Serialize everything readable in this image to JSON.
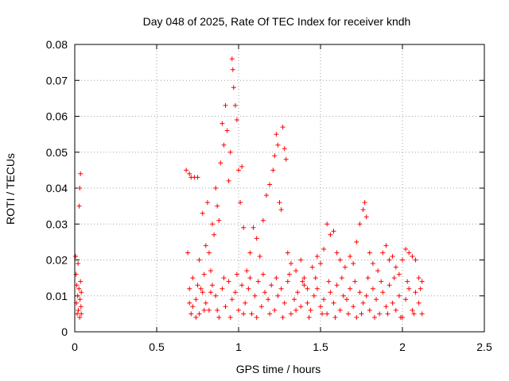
{
  "chart_data": {
    "type": "scatter",
    "title": "Day 048 of 2025, Rate Of TEC Index for receiver kndh",
    "xlabel": "GPS time / hours",
    "ylabel": "ROTI / TECUs",
    "xlim": [
      0,
      2.5
    ],
    "ylim": [
      0,
      0.08
    ],
    "x_ticks": [
      0,
      0.5,
      1,
      1.5,
      2,
      2.5
    ],
    "x_tick_labels": [
      "0",
      "0.5",
      "1",
      "1.5",
      "2",
      "2.5"
    ],
    "y_ticks": [
      0,
      0.01,
      0.02,
      0.03,
      0.04,
      0.05,
      0.06,
      0.07,
      0.08
    ],
    "y_tick_labels": [
      "0",
      "0.01",
      "0.02",
      "0.03",
      "0.04",
      "0.05",
      "0.06",
      "0.07",
      "0.08"
    ],
    "grid": true,
    "marker": "+",
    "marker_color": "#ff0000",
    "series": [
      {
        "name": "ROTI",
        "points": [
          [
            0.005,
            0.021
          ],
          [
            0.008,
            0.016
          ],
          [
            0.01,
            0.008
          ],
          [
            0.012,
            0.013
          ],
          [
            0.015,
            0.005
          ],
          [
            0.018,
            0.01
          ],
          [
            0.02,
            0.019
          ],
          [
            0.022,
            0.006
          ],
          [
            0.025,
            0.012
          ],
          [
            0.027,
            0.035
          ],
          [
            0.03,
            0.04
          ],
          [
            0.03,
            0.004
          ],
          [
            0.032,
            0.009
          ],
          [
            0.035,
            0.044
          ],
          [
            0.035,
            0.014
          ],
          [
            0.038,
            0.007
          ],
          [
            0.04,
            0.011
          ],
          [
            0.04,
            0.005
          ],
          [
            0.68,
            0.045
          ],
          [
            0.69,
            0.022
          ],
          [
            0.7,
            0.044
          ],
          [
            0.7,
            0.008
          ],
          [
            0.71,
            0.043
          ],
          [
            0.72,
            0.015
          ],
          [
            0.73,
            0.043
          ],
          [
            0.74,
            0.004
          ],
          [
            0.75,
            0.043
          ],
          [
            0.76,
            0.02
          ],
          [
            0.77,
            0.012
          ],
          [
            0.78,
            0.033
          ],
          [
            0.79,
            0.006
          ],
          [
            0.8,
            0.024
          ],
          [
            0.81,
            0.036
          ],
          [
            0.82,
            0.022
          ],
          [
            0.83,
            0.011
          ],
          [
            0.84,
            0.03
          ],
          [
            0.85,
            0.027
          ],
          [
            0.86,
            0.04
          ],
          [
            0.87,
            0.035
          ],
          [
            0.88,
            0.031
          ],
          [
            0.89,
            0.047
          ],
          [
            0.9,
            0.058
          ],
          [
            0.91,
            0.052
          ],
          [
            0.92,
            0.063
          ],
          [
            0.93,
            0.056
          ],
          [
            0.94,
            0.042
          ],
          [
            0.95,
            0.05
          ],
          [
            0.96,
            0.076
          ],
          [
            0.965,
            0.073
          ],
          [
            0.97,
            0.068
          ],
          [
            0.98,
            0.063
          ],
          [
            0.99,
            0.059
          ],
          [
            1.0,
            0.045
          ],
          [
            1.01,
            0.036
          ],
          [
            1.02,
            0.046
          ],
          [
            1.03,
            0.029
          ],
          [
            1.05,
            0.017
          ],
          [
            1.07,
            0.022
          ],
          [
            1.09,
            0.029
          ],
          [
            1.11,
            0.026
          ],
          [
            1.13,
            0.021
          ],
          [
            1.15,
            0.031
          ],
          [
            1.17,
            0.038
          ],
          [
            1.19,
            0.041
          ],
          [
            1.21,
            0.045
          ],
          [
            1.22,
            0.049
          ],
          [
            1.23,
            0.055
          ],
          [
            1.24,
            0.052
          ],
          [
            1.25,
            0.036
          ],
          [
            1.26,
            0.034
          ],
          [
            1.27,
            0.057
          ],
          [
            1.28,
            0.051
          ],
          [
            1.29,
            0.048
          ],
          [
            1.3,
            0.022
          ],
          [
            1.32,
            0.019
          ],
          [
            1.35,
            0.017
          ],
          [
            1.38,
            0.02
          ],
          [
            1.4,
            0.015
          ],
          [
            1.42,
            0.012
          ],
          [
            1.45,
            0.018
          ],
          [
            1.48,
            0.021
          ],
          [
            1.5,
            0.019
          ],
          [
            1.52,
            0.023
          ],
          [
            1.54,
            0.03
          ],
          [
            1.56,
            0.027
          ],
          [
            1.58,
            0.028
          ],
          [
            1.6,
            0.022
          ],
          [
            1.62,
            0.02
          ],
          [
            1.65,
            0.018
          ],
          [
            1.68,
            0.021
          ],
          [
            1.7,
            0.019
          ],
          [
            1.72,
            0.025
          ],
          [
            1.74,
            0.03
          ],
          [
            1.76,
            0.034
          ],
          [
            1.77,
            0.036
          ],
          [
            1.78,
            0.032
          ],
          [
            1.8,
            0.022
          ],
          [
            1.82,
            0.019
          ],
          [
            1.85,
            0.017
          ],
          [
            1.88,
            0.022
          ],
          [
            1.9,
            0.024
          ],
          [
            1.92,
            0.02
          ],
          [
            1.94,
            0.021
          ],
          [
            1.96,
            0.018
          ],
          [
            1.98,
            0.016
          ],
          [
            2.0,
            0.02
          ],
          [
            2.02,
            0.023
          ],
          [
            2.04,
            0.022
          ],
          [
            2.06,
            0.021
          ],
          [
            2.08,
            0.02
          ],
          [
            2.1,
            0.015
          ],
          [
            2.12,
            0.014
          ],
          [
            0.7,
            0.012
          ],
          [
            0.72,
            0.007
          ],
          [
            0.74,
            0.009
          ],
          [
            0.76,
            0.005
          ],
          [
            0.78,
            0.011
          ],
          [
            0.8,
            0.008
          ],
          [
            0.82,
            0.006
          ],
          [
            0.84,
            0.013
          ],
          [
            0.86,
            0.01
          ],
          [
            0.88,
            0.004
          ],
          [
            0.9,
            0.012
          ],
          [
            0.92,
            0.007
          ],
          [
            0.94,
            0.014
          ],
          [
            0.96,
            0.009
          ],
          [
            0.98,
            0.011
          ],
          [
            1.0,
            0.006
          ],
          [
            1.02,
            0.013
          ],
          [
            1.04,
            0.008
          ],
          [
            1.06,
            0.012
          ],
          [
            1.08,
            0.005
          ],
          [
            1.1,
            0.01
          ],
          [
            1.12,
            0.014
          ],
          [
            1.14,
            0.007
          ],
          [
            1.16,
            0.011
          ],
          [
            1.18,
            0.009
          ],
          [
            1.2,
            0.013
          ],
          [
            1.22,
            0.006
          ],
          [
            1.24,
            0.01
          ],
          [
            1.26,
            0.012
          ],
          [
            1.28,
            0.008
          ],
          [
            1.3,
            0.014
          ],
          [
            1.32,
            0.005
          ],
          [
            1.34,
            0.009
          ],
          [
            1.36,
            0.011
          ],
          [
            1.38,
            0.007
          ],
          [
            1.4,
            0.013
          ],
          [
            1.42,
            0.008
          ],
          [
            1.44,
            0.006
          ],
          [
            1.46,
            0.01
          ],
          [
            1.48,
            0.012
          ],
          [
            1.5,
            0.007
          ],
          [
            1.52,
            0.009
          ],
          [
            1.54,
            0.005
          ],
          [
            1.56,
            0.011
          ],
          [
            1.58,
            0.008
          ],
          [
            1.6,
            0.013
          ],
          [
            1.62,
            0.006
          ],
          [
            1.64,
            0.01
          ],
          [
            1.66,
            0.009
          ],
          [
            1.68,
            0.012
          ],
          [
            1.7,
            0.007
          ],
          [
            1.72,
            0.004
          ],
          [
            1.74,
            0.011
          ],
          [
            1.76,
            0.008
          ],
          [
            1.78,
            0.01
          ],
          [
            1.8,
            0.006
          ],
          [
            1.82,
            0.012
          ],
          [
            1.84,
            0.009
          ],
          [
            1.86,
            0.005
          ],
          [
            1.88,
            0.011
          ],
          [
            1.9,
            0.007
          ],
          [
            1.92,
            0.013
          ],
          [
            1.94,
            0.008
          ],
          [
            1.96,
            0.006
          ],
          [
            1.98,
            0.01
          ],
          [
            2.0,
            0.004
          ],
          [
            2.02,
            0.009
          ],
          [
            2.04,
            0.012
          ],
          [
            2.06,
            0.006
          ],
          [
            2.08,
            0.011
          ],
          [
            2.1,
            0.008
          ],
          [
            2.12,
            0.005
          ],
          [
            0.71,
            0.005
          ],
          [
            0.75,
            0.013
          ],
          [
            0.79,
            0.016
          ],
          [
            0.83,
            0.017
          ],
          [
            0.87,
            0.006
          ],
          [
            0.91,
            0.015
          ],
          [
            0.95,
            0.004
          ],
          [
            0.99,
            0.016
          ],
          [
            1.03,
            0.005
          ],
          [
            1.07,
            0.015
          ],
          [
            1.11,
            0.004
          ],
          [
            1.15,
            0.016
          ],
          [
            1.19,
            0.005
          ],
          [
            1.23,
            0.015
          ],
          [
            1.27,
            0.004
          ],
          [
            1.31,
            0.016
          ],
          [
            1.35,
            0.006
          ],
          [
            1.39,
            0.014
          ],
          [
            1.43,
            0.004
          ],
          [
            1.47,
            0.015
          ],
          [
            1.51,
            0.005
          ],
          [
            1.55,
            0.014
          ],
          [
            1.59,
            0.004
          ],
          [
            1.63,
            0.015
          ],
          [
            1.67,
            0.005
          ],
          [
            1.71,
            0.014
          ],
          [
            1.75,
            0.005
          ],
          [
            1.79,
            0.015
          ],
          [
            1.83,
            0.004
          ],
          [
            1.87,
            0.014
          ],
          [
            1.91,
            0.005
          ],
          [
            1.95,
            0.015
          ],
          [
            1.99,
            0.004
          ],
          [
            2.03,
            0.014
          ],
          [
            2.07,
            0.005
          ],
          [
            2.11,
            0.012
          ]
        ]
      }
    ]
  }
}
